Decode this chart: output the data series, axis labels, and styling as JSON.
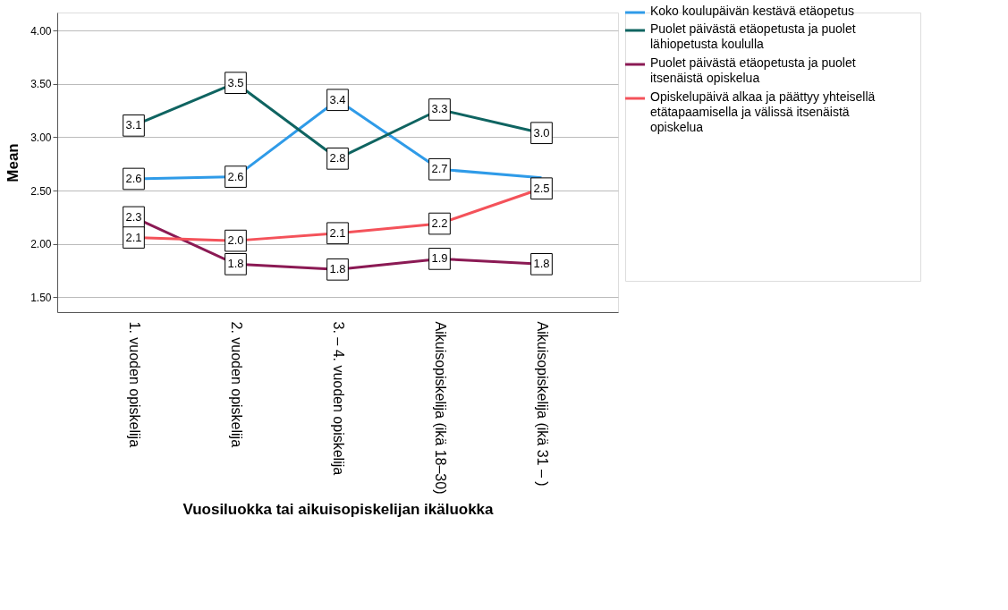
{
  "chart_data": {
    "type": "line",
    "xlabel": "Vuosiluokka tai aikuisopiskelijan ikäluokka",
    "ylabel": "Mean",
    "categories": [
      "1. vuoden opiskelija",
      "2. vuoden opiskelija",
      "3. – 4. vuoden opiskelija",
      "Aikuisopiskelija (ikä 18–30)",
      "Aikuisopiskelija (ikä 31 – )"
    ],
    "series": [
      {
        "name": "Koko koulupäivän kestävä etäopetus",
        "color": "#2f9be8",
        "values": [
          2.61,
          2.63,
          3.35,
          2.7,
          2.62
        ],
        "value_labels": [
          "2.6",
          "2.6",
          "3.4",
          "2.7",
          null
        ]
      },
      {
        "name": "Puolet päivästä etäopetusta ja puolet lähiopetusta koululla",
        "color": "#0f6461",
        "values": [
          3.11,
          3.51,
          2.8,
          3.26,
          3.04
        ],
        "value_labels": [
          "3.1",
          "3.5",
          "2.8",
          "3.3",
          "3.0"
        ]
      },
      {
        "name": "Puolet päivästä etäopetusta ja puolet itsenäistä opiskelua",
        "color": "#8b1a54",
        "values": [
          2.25,
          1.81,
          1.76,
          1.86,
          1.81
        ],
        "value_labels": [
          "2.3",
          "1.8",
          "1.8",
          "1.9",
          "1.8"
        ]
      },
      {
        "name": "Opiskelupäivä alkaa ja päättyy yhteisellä etätapaamisella ja välissä itsenäistä opiskelua",
        "color": "#f4525a",
        "values": [
          2.06,
          2.03,
          2.1,
          2.19,
          2.52
        ],
        "value_labels": [
          "2.1",
          "2.0",
          "2.1",
          "2.2",
          "2.5"
        ]
      }
    ],
    "ylim": [
      1.36,
      4.17
    ],
    "yticks": [
      {
        "value": 1.5,
        "label": "1.50"
      },
      {
        "value": 2.0,
        "label": "2.00"
      },
      {
        "value": 2.5,
        "label": "2.50"
      },
      {
        "value": 3.0,
        "label": "3.00"
      },
      {
        "value": 3.5,
        "label": "3.50"
      },
      {
        "value": 4.0,
        "label": "4.00"
      }
    ],
    "grid": "y",
    "legend": "top right",
    "marker": "square",
    "line_style": "solid"
  }
}
